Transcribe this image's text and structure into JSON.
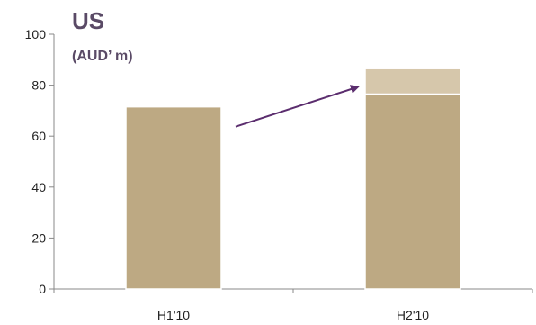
{
  "chart_data": {
    "type": "bar",
    "title": "US",
    "subtitle": "(AUD’ m)",
    "categories": [
      "H1'10",
      "H2'10"
    ],
    "series": [
      {
        "values": [
          71.5,
          76.5
        ],
        "color": "#bda983"
      },
      {
        "values": [
          0,
          10
        ],
        "color": "#d6c7ab"
      }
    ],
    "ylim": [
      0,
      100
    ],
    "yticks": [
      "0",
      "20",
      "40",
      "60",
      "80",
      "100"
    ],
    "grid": false,
    "legend": "none",
    "annotations": [
      {
        "type": "arrow",
        "from": "H1'10",
        "to": "H2'10",
        "color": "#5b2d6e"
      }
    ]
  }
}
